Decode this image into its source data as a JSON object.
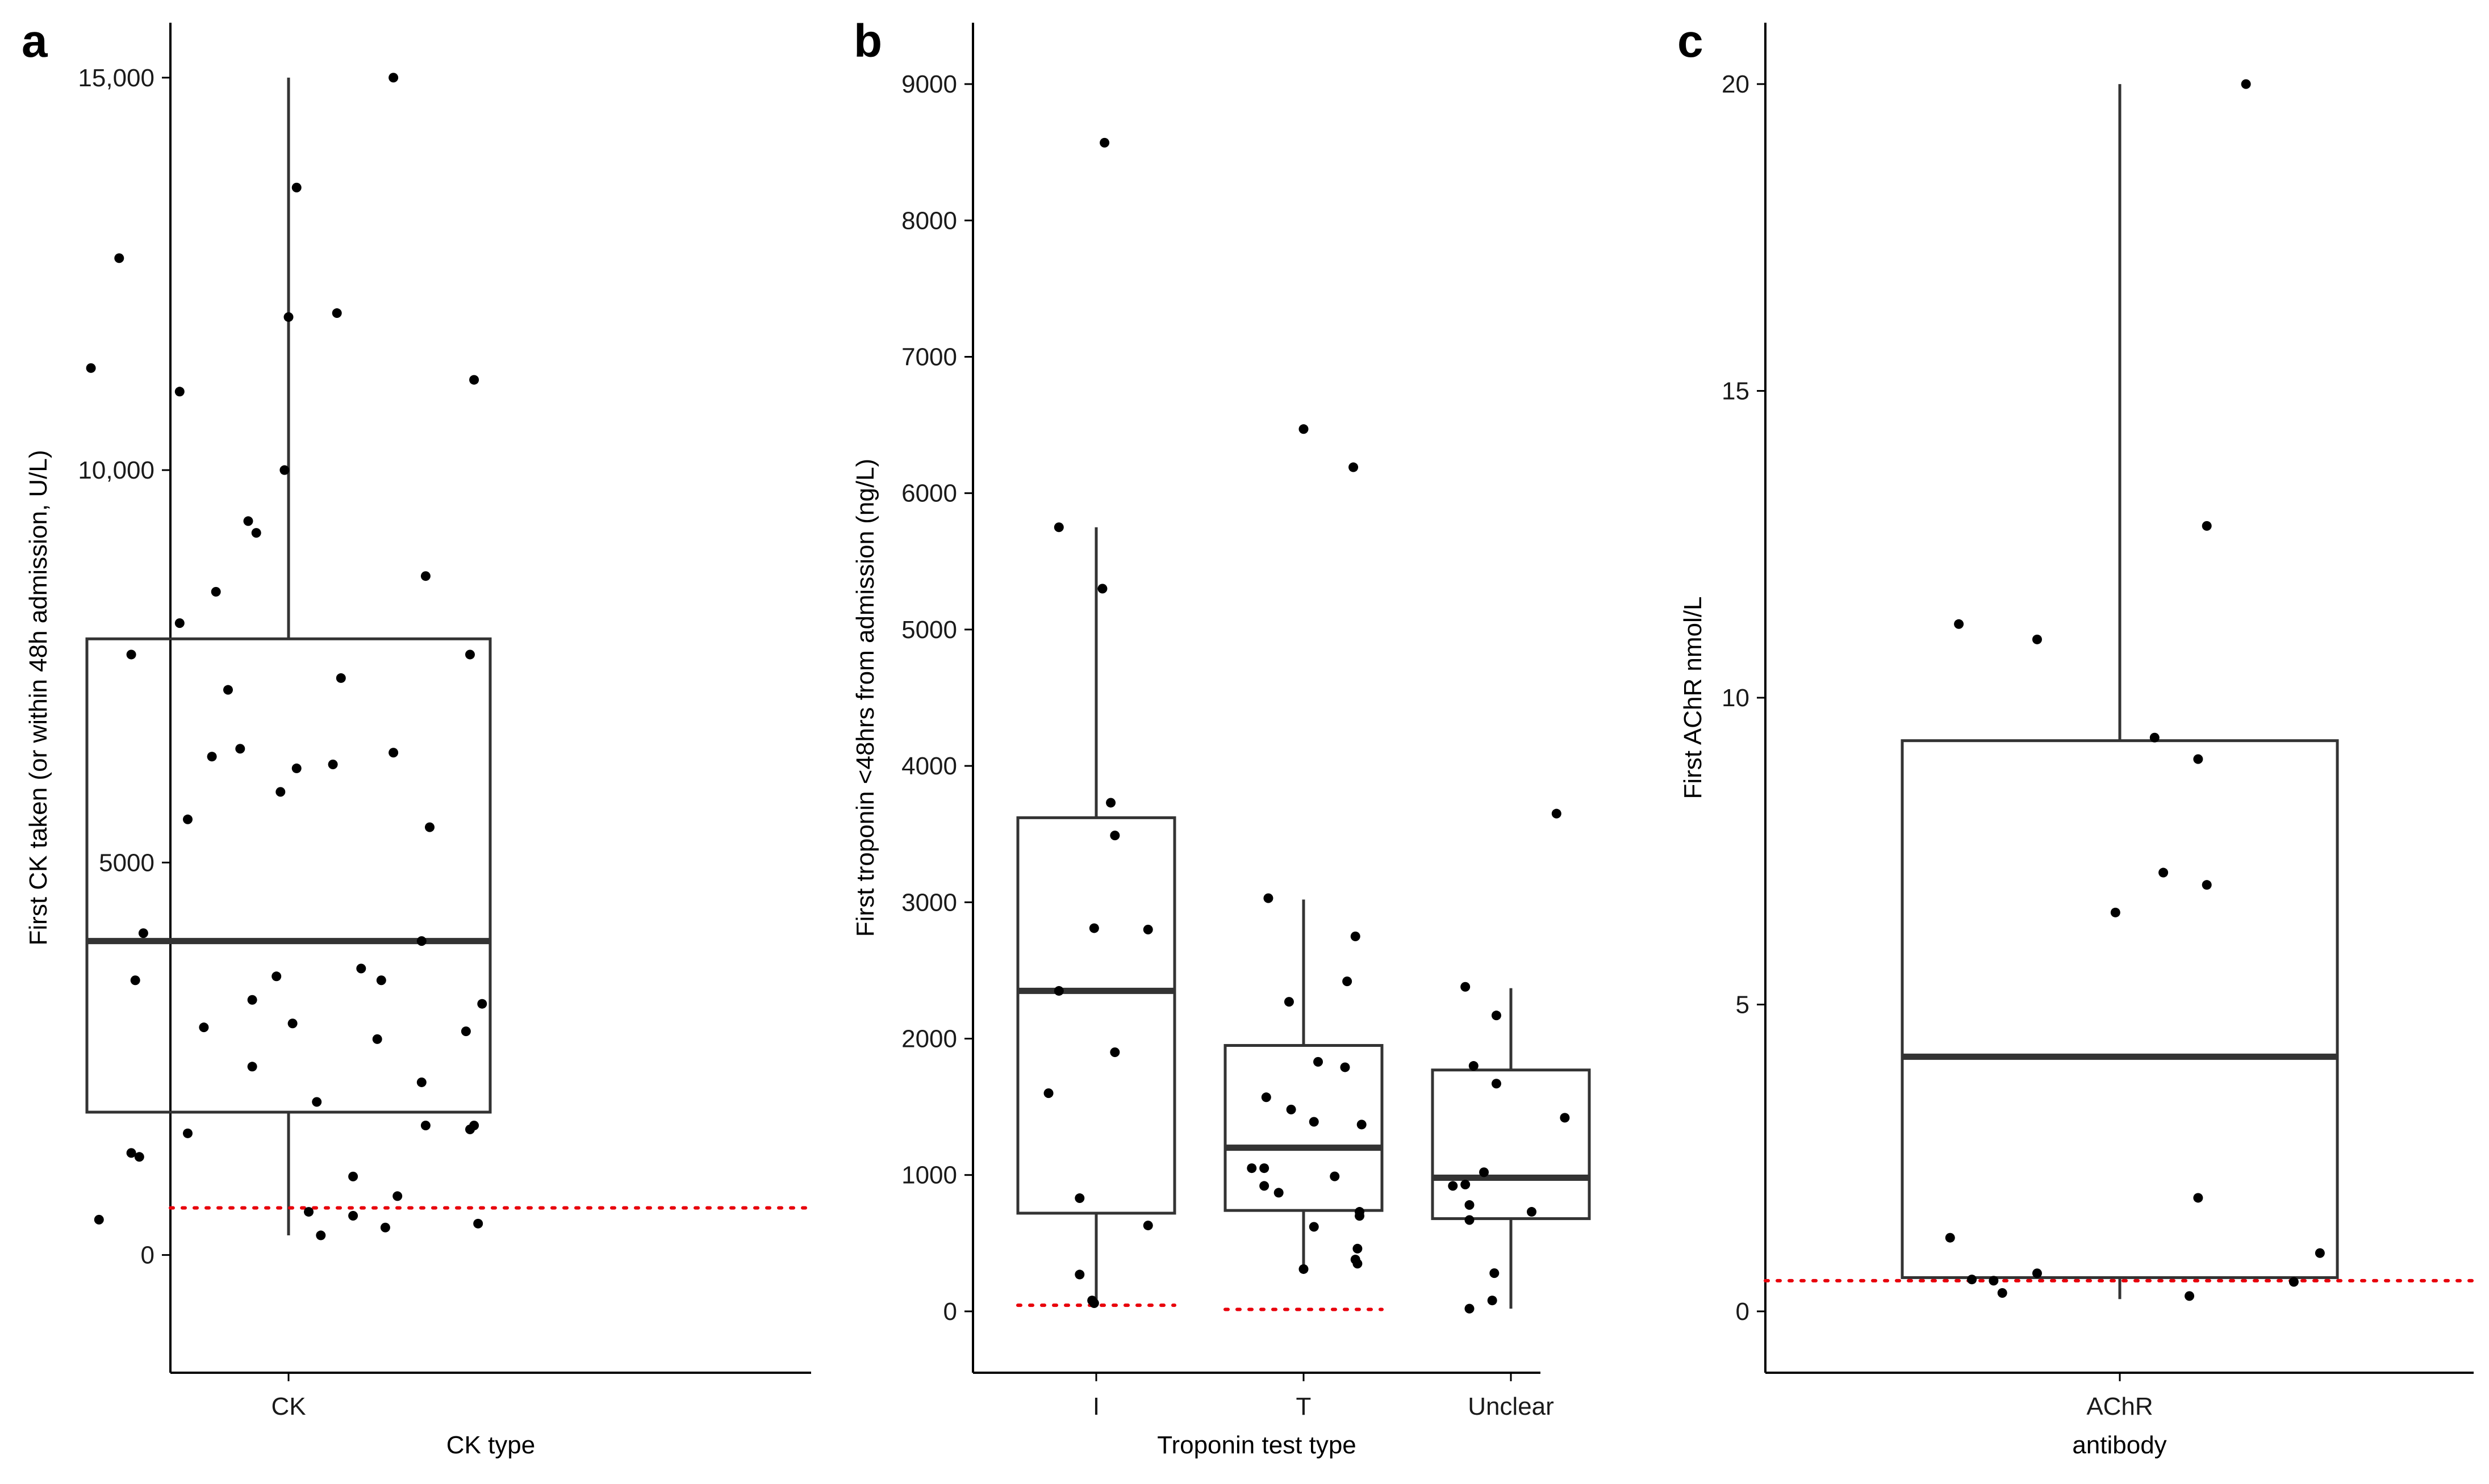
{
  "chart_data": [
    {
      "panel": "a",
      "type": "box",
      "xlabel": "CK type",
      "ylabel": "First CK taken (or within 48h admission, U/L)",
      "categories": [
        "CK"
      ],
      "ylim": [
        -1500,
        15700
      ],
      "yticks": [
        0,
        5000,
        10000,
        15000
      ],
      "ytick_labels": [
        "0",
        "5000",
        "10,000",
        "15,000"
      ],
      "reference_line": 600,
      "boxes": [
        {
          "category": "CK",
          "whisker_low": 250,
          "q1": 1820,
          "median": 4000,
          "q3": 7850,
          "whisker_high": 15000
        }
      ],
      "points": [
        {
          "category": "CK",
          "jitter": 0.26,
          "value": 15000
        },
        {
          "category": "CK",
          "jitter": 0.02,
          "value": 13600
        },
        {
          "category": "CK",
          "jitter": -0.42,
          "value": 12700
        },
        {
          "category": "CK",
          "jitter": 0.0,
          "value": 11950
        },
        {
          "category": "CK",
          "jitter": 0.12,
          "value": 12000
        },
        {
          "category": "CK",
          "jitter": -0.49,
          "value": 11300
        },
        {
          "category": "CK",
          "jitter": -0.27,
          "value": 11000
        },
        {
          "category": "CK",
          "jitter": 0.46,
          "value": 11150
        },
        {
          "category": "CK",
          "jitter": -0.01,
          "value": 10000
        },
        {
          "category": "CK",
          "jitter": -0.1,
          "value": 9350
        },
        {
          "category": "CK",
          "jitter": -0.08,
          "value": 9200
        },
        {
          "category": "CK",
          "jitter": 0.34,
          "value": 8650
        },
        {
          "category": "CK",
          "jitter": -0.18,
          "value": 8450
        },
        {
          "category": "CK",
          "jitter": -0.27,
          "value": 8050
        },
        {
          "category": "CK",
          "jitter": -0.39,
          "value": 7650
        },
        {
          "category": "CK",
          "jitter": 0.45,
          "value": 7650
        },
        {
          "category": "CK",
          "jitter": 0.13,
          "value": 7350
        },
        {
          "category": "CK",
          "jitter": -0.15,
          "value": 7200
        },
        {
          "category": "CK",
          "jitter": -0.12,
          "value": 6450
        },
        {
          "category": "CK",
          "jitter": -0.19,
          "value": 6350
        },
        {
          "category": "CK",
          "jitter": 0.26,
          "value": 6400
        },
        {
          "category": "CK",
          "jitter": 0.11,
          "value": 6250
        },
        {
          "category": "CK",
          "jitter": 0.02,
          "value": 6200
        },
        {
          "category": "CK",
          "jitter": -0.02,
          "value": 5900
        },
        {
          "category": "CK",
          "jitter": -0.25,
          "value": 5550
        },
        {
          "category": "CK",
          "jitter": 0.35,
          "value": 5450
        },
        {
          "category": "CK",
          "jitter": -0.36,
          "value": 4100
        },
        {
          "category": "CK",
          "jitter": 0.33,
          "value": 4000
        },
        {
          "category": "CK",
          "jitter": 0.18,
          "value": 3650
        },
        {
          "category": "CK",
          "jitter": -0.38,
          "value": 3500
        },
        {
          "category": "CK",
          "jitter": -0.03,
          "value": 3550
        },
        {
          "category": "CK",
          "jitter": 0.23,
          "value": 3500
        },
        {
          "category": "CK",
          "jitter": -0.09,
          "value": 3250
        },
        {
          "category": "CK",
          "jitter": 0.48,
          "value": 3200
        },
        {
          "category": "CK",
          "jitter": 0.01,
          "value": 2950
        },
        {
          "category": "CK",
          "jitter": -0.21,
          "value": 2900
        },
        {
          "category": "CK",
          "jitter": 0.44,
          "value": 2850
        },
        {
          "category": "CK",
          "jitter": 0.22,
          "value": 2750
        },
        {
          "category": "CK",
          "jitter": -0.09,
          "value": 2400
        },
        {
          "category": "CK",
          "jitter": 0.33,
          "value": 2200
        },
        {
          "category": "CK",
          "jitter": 0.07,
          "value": 1950
        },
        {
          "category": "CK",
          "jitter": 0.34,
          "value": 1650
        },
        {
          "category": "CK",
          "jitter": 0.46,
          "value": 1650
        },
        {
          "category": "CK",
          "jitter": 0.45,
          "value": 1600
        },
        {
          "category": "CK",
          "jitter": -0.25,
          "value": 1550
        },
        {
          "category": "CK",
          "jitter": -0.39,
          "value": 1300
        },
        {
          "category": "CK",
          "jitter": -0.37,
          "value": 1250
        },
        {
          "category": "CK",
          "jitter": 0.16,
          "value": 1000
        },
        {
          "category": "CK",
          "jitter": 0.27,
          "value": 750
        },
        {
          "category": "CK",
          "jitter": 0.05,
          "value": 550
        },
        {
          "category": "CK",
          "jitter": 0.16,
          "value": 500
        },
        {
          "category": "CK",
          "jitter": -0.47,
          "value": 450
        },
        {
          "category": "CK",
          "jitter": 0.24,
          "value": 350
        },
        {
          "category": "CK",
          "jitter": 0.47,
          "value": 400
        },
        {
          "category": "CK",
          "jitter": 0.08,
          "value": 250
        }
      ]
    },
    {
      "panel": "b",
      "type": "box",
      "xlabel": "Troponin test type",
      "ylabel": "First troponin <48hrs from admission (ng/L)",
      "categories": [
        "I",
        "T",
        "Unclear"
      ],
      "ylim": [
        -450,
        9450
      ],
      "yticks": [
        0,
        1000,
        2000,
        3000,
        4000,
        5000,
        6000,
        7000,
        8000,
        9000
      ],
      "ytick_labels": [
        "0",
        "1000",
        "2000",
        "3000",
        "4000",
        "5000",
        "6000",
        "7000",
        "8000",
        "9000"
      ],
      "reference_lines": [
        {
          "category": "I",
          "value": 45
        },
        {
          "category": "T",
          "value": 14
        }
      ],
      "boxes": [
        {
          "category": "I",
          "whisker_low": 50,
          "q1": 720,
          "median": 2350,
          "q3": 3620,
          "whisker_high": 5750
        },
        {
          "category": "T",
          "whisker_low": 300,
          "q1": 740,
          "median": 1200,
          "q3": 1950,
          "whisker_high": 3020
        },
        {
          "category": "Unclear",
          "whisker_low": 20,
          "q1": 680,
          "median": 980,
          "q3": 1770,
          "whisker_high": 2370
        }
      ],
      "points": [
        {
          "category": "I",
          "jitter": 0.04,
          "value": 8570
        },
        {
          "category": "I",
          "jitter": -0.18,
          "value": 5750
        },
        {
          "category": "I",
          "jitter": 0.03,
          "value": 5300
        },
        {
          "category": "I",
          "jitter": 0.07,
          "value": 3730
        },
        {
          "category": "I",
          "jitter": 0.09,
          "value": 3490
        },
        {
          "category": "I",
          "jitter": -0.18,
          "value": 2350
        },
        {
          "category": "I",
          "jitter": -0.01,
          "value": 2810
        },
        {
          "category": "I",
          "jitter": 0.25,
          "value": 2800
        },
        {
          "category": "I",
          "jitter": 0.09,
          "value": 1900
        },
        {
          "category": "I",
          "jitter": -0.23,
          "value": 1600
        },
        {
          "category": "I",
          "jitter": -0.08,
          "value": 830
        },
        {
          "category": "I",
          "jitter": 0.25,
          "value": 630
        },
        {
          "category": "I",
          "jitter": -0.08,
          "value": 270
        },
        {
          "category": "I",
          "jitter": -0.02,
          "value": 80
        },
        {
          "category": "I",
          "jitter": -0.01,
          "value": 60
        },
        {
          "category": "T",
          "jitter": 0.0,
          "value": 6470
        },
        {
          "category": "T",
          "jitter": 0.24,
          "value": 6190
        },
        {
          "category": "T",
          "jitter": -0.17,
          "value": 3030
        },
        {
          "category": "T",
          "jitter": 0.25,
          "value": 2750
        },
        {
          "category": "T",
          "jitter": 0.21,
          "value": 2420
        },
        {
          "category": "T",
          "jitter": -0.07,
          "value": 2270
        },
        {
          "category": "T",
          "jitter": 0.07,
          "value": 1830
        },
        {
          "category": "T",
          "jitter": 0.2,
          "value": 1790
        },
        {
          "category": "T",
          "jitter": -0.18,
          "value": 1570
        },
        {
          "category": "T",
          "jitter": -0.06,
          "value": 1480
        },
        {
          "category": "T",
          "jitter": 0.05,
          "value": 1390
        },
        {
          "category": "T",
          "jitter": 0.28,
          "value": 1370
        },
        {
          "category": "T",
          "jitter": -0.25,
          "value": 1050
        },
        {
          "category": "T",
          "jitter": -0.19,
          "value": 1050
        },
        {
          "category": "T",
          "jitter": 0.15,
          "value": 990
        },
        {
          "category": "T",
          "jitter": -0.19,
          "value": 920
        },
        {
          "category": "T",
          "jitter": -0.12,
          "value": 870
        },
        {
          "category": "T",
          "jitter": 0.27,
          "value": 730
        },
        {
          "category": "T",
          "jitter": 0.27,
          "value": 700
        },
        {
          "category": "T",
          "jitter": 0.05,
          "value": 620
        },
        {
          "category": "T",
          "jitter": 0.26,
          "value": 460
        },
        {
          "category": "T",
          "jitter": 0.25,
          "value": 380
        },
        {
          "category": "T",
          "jitter": 0.26,
          "value": 350
        },
        {
          "category": "T",
          "jitter": 0.0,
          "value": 310
        },
        {
          "category": "Unclear",
          "jitter": 0.22,
          "value": 3650
        },
        {
          "category": "Unclear",
          "jitter": -0.22,
          "value": 2380
        },
        {
          "category": "Unclear",
          "jitter": -0.07,
          "value": 2170
        },
        {
          "category": "Unclear",
          "jitter": -0.18,
          "value": 1800
        },
        {
          "category": "Unclear",
          "jitter": -0.07,
          "value": 1670
        },
        {
          "category": "Unclear",
          "jitter": 0.26,
          "value": 1420
        },
        {
          "category": "Unclear",
          "jitter": -0.13,
          "value": 1020
        },
        {
          "category": "Unclear",
          "jitter": -0.22,
          "value": 930
        },
        {
          "category": "Unclear",
          "jitter": -0.28,
          "value": 920
        },
        {
          "category": "Unclear",
          "jitter": -0.2,
          "value": 780
        },
        {
          "category": "Unclear",
          "jitter": 0.1,
          "value": 730
        },
        {
          "category": "Unclear",
          "jitter": -0.2,
          "value": 670
        },
        {
          "category": "Unclear",
          "jitter": -0.08,
          "value": 280
        },
        {
          "category": "Unclear",
          "jitter": -0.09,
          "value": 80
        },
        {
          "category": "Unclear",
          "jitter": -0.2,
          "value": 20
        }
      ]
    },
    {
      "panel": "c",
      "type": "box",
      "xlabel": "antibody",
      "ylabel": "First AChR nmol/L",
      "categories": [
        "AChR"
      ],
      "ylim": [
        -1.0,
        21.0
      ],
      "yticks": [
        0,
        5,
        10,
        15,
        20
      ],
      "ytick_labels": [
        "0",
        "5",
        "10",
        "15",
        "20"
      ],
      "reference_line": 0.5,
      "boxes": [
        {
          "category": "AChR",
          "whisker_low": 0.2,
          "q1": 0.55,
          "median": 4.15,
          "q3": 9.3,
          "whisker_high": 20.0
        }
      ],
      "points": [
        {
          "category": "AChR",
          "jitter": 0.29,
          "value": 20.0
        },
        {
          "category": "AChR",
          "jitter": 0.2,
          "value": 12.8
        },
        {
          "category": "AChR",
          "jitter": -0.37,
          "value": 11.2
        },
        {
          "category": "AChR",
          "jitter": -0.19,
          "value": 10.95
        },
        {
          "category": "AChR",
          "jitter": 0.08,
          "value": 9.35
        },
        {
          "category": "AChR",
          "jitter": 0.18,
          "value": 9.0
        },
        {
          "category": "AChR",
          "jitter": 0.1,
          "value": 7.15
        },
        {
          "category": "AChR",
          "jitter": 0.2,
          "value": 6.95
        },
        {
          "category": "AChR",
          "jitter": -0.01,
          "value": 6.5
        },
        {
          "category": "AChR",
          "jitter": 0.18,
          "value": 1.85
        },
        {
          "category": "AChR",
          "jitter": -0.39,
          "value": 1.2
        },
        {
          "category": "AChR",
          "jitter": 0.46,
          "value": 0.95
        },
        {
          "category": "AChR",
          "jitter": -0.19,
          "value": 0.62
        },
        {
          "category": "AChR",
          "jitter": -0.34,
          "value": 0.52
        },
        {
          "category": "AChR",
          "jitter": -0.29,
          "value": 0.5
        },
        {
          "category": "AChR",
          "jitter": 0.4,
          "value": 0.48
        },
        {
          "category": "AChR",
          "jitter": -0.27,
          "value": 0.3
        },
        {
          "category": "AChR",
          "jitter": 0.16,
          "value": 0.25
        }
      ]
    }
  ],
  "colors": {
    "box": "#333333",
    "median": "#333333",
    "points": "#000000",
    "reference": "#e8000b",
    "axis": "#000000"
  }
}
